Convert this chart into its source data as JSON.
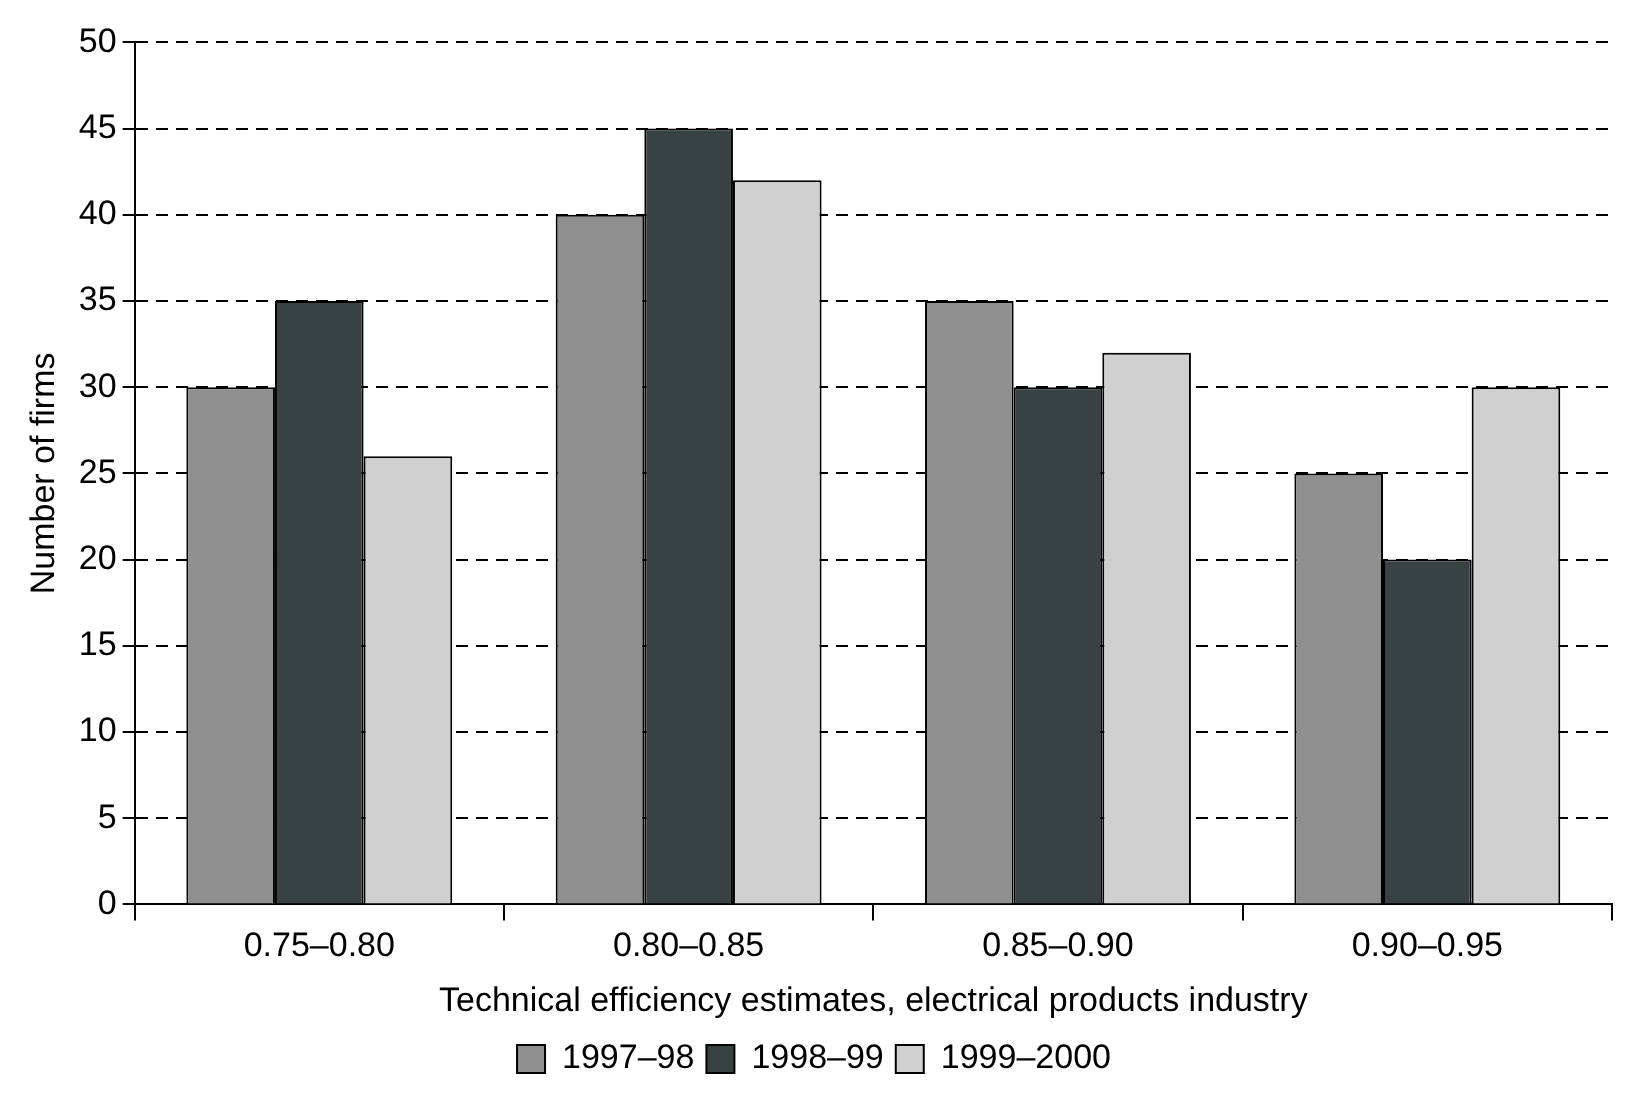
{
  "chart_data": {
    "type": "bar",
    "xlabel": "Technical efficiency estimates, electrical products industry",
    "ylabel": "Number of firms",
    "categories": [
      "0.75–0.80",
      "0.80–0.85",
      "0.85–0.90",
      "0.90–0.95"
    ],
    "series": [
      {
        "name": "1997–98",
        "color": "#8f8f8f",
        "values": [
          30,
          40,
          35,
          25
        ]
      },
      {
        "name": "1998–99",
        "color": "#394242",
        "values": [
          35,
          45,
          30,
          20
        ]
      },
      {
        "name": "1999–2000",
        "color": "#d0d0d0",
        "values": [
          26,
          42,
          32,
          30
        ]
      }
    ],
    "ylim": [
      0,
      50
    ],
    "yticks": [
      0,
      5,
      10,
      15,
      20,
      25,
      30,
      35,
      40,
      45,
      50
    ],
    "grid": "y",
    "legend": "bottom"
  }
}
